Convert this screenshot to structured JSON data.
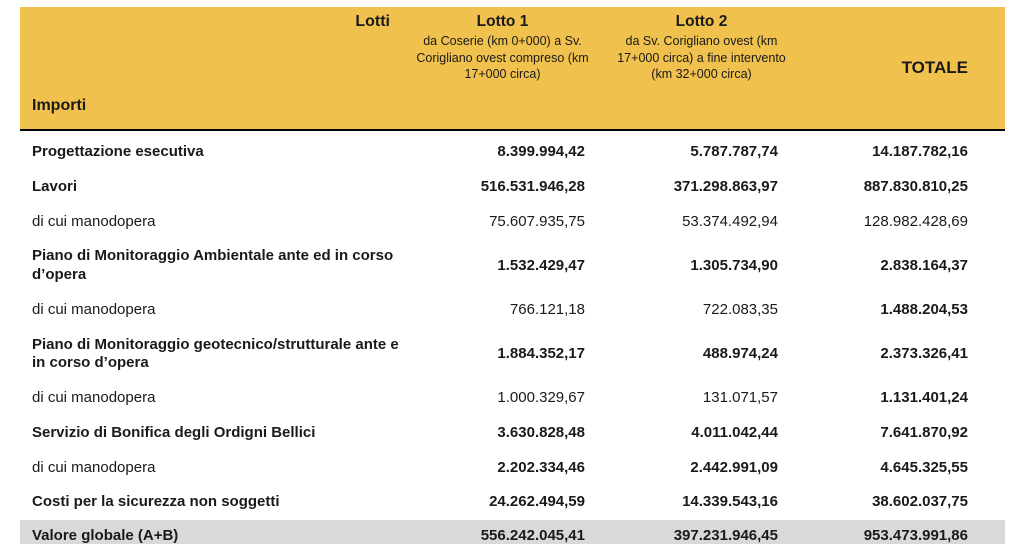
{
  "table": {
    "header": {
      "lotti_label": "Lotti",
      "importi_label": "Importi",
      "col1_title": "Lotto 1",
      "col1_subtitle": "da Coserie (km 0+000) a Sv. Corigliano ovest compreso (km 17+000 circa)",
      "col2_title": "Lotto 2",
      "col2_subtitle": "da Sv. Corigliano ovest (km 17+000 circa) a fine intervento (km 32+000 circa)",
      "col3_title": "TOTALE"
    },
    "colors": {
      "header_bg": "#F0C24D",
      "total_row_bg": "#D9D9D9"
    },
    "rows": [
      {
        "label": "Progettazione esecutiva",
        "lotto1": "8.399.994,42",
        "lotto2": "5.787.787,74",
        "totale": "14.187.782,16"
      },
      {
        "label": "Lavori",
        "lotto1": "516.531.946,28",
        "lotto2": "371.298.863,97",
        "totale": "887.830.810,25"
      },
      {
        "label": "di cui manodopera",
        "lotto1": "75.607.935,75",
        "lotto2": "53.374.492,94",
        "totale": "128.982.428,69"
      },
      {
        "label": "Piano di Monitoraggio Ambientale ante ed in corso d’opera",
        "lotto1": "1.532.429,47",
        "lotto2": "1.305.734,90",
        "totale": "2.838.164,37"
      },
      {
        "label": "di cui manodopera",
        "lotto1": "766.121,18",
        "lotto2": "722.083,35",
        "totale": "1.488.204,53"
      },
      {
        "label": "Piano di Monitoraggio geotecnico/strutturale ante e in corso d’opera",
        "lotto1": "1.884.352,17",
        "lotto2": "488.974,24",
        "totale": "2.373.326,41"
      },
      {
        "label": "di cui manodopera",
        "lotto1": "1.000.329,67",
        "lotto2": "131.071,57",
        "totale": "1.131.401,24"
      },
      {
        "label": "Servizio di Bonifica degli Ordigni Bellici",
        "lotto1": "3.630.828,48",
        "lotto2": "4.011.042,44",
        "totale": "7.641.870,92"
      },
      {
        "label": "di cui manodopera",
        "lotto1": "2.202.334,46",
        "lotto2": "2.442.991,09",
        "totale": "4.645.325,55"
      },
      {
        "label": "Costi per la sicurezza non soggetti",
        "lotto1": "24.262.494,59",
        "lotto2": "14.339.543,16",
        "totale": "38.602.037,75"
      },
      {
        "label": "Valore globale (A+B)",
        "lotto1": "556.242.045,41",
        "lotto2": "397.231.946,45",
        "totale": "953.473.991,86"
      }
    ]
  }
}
